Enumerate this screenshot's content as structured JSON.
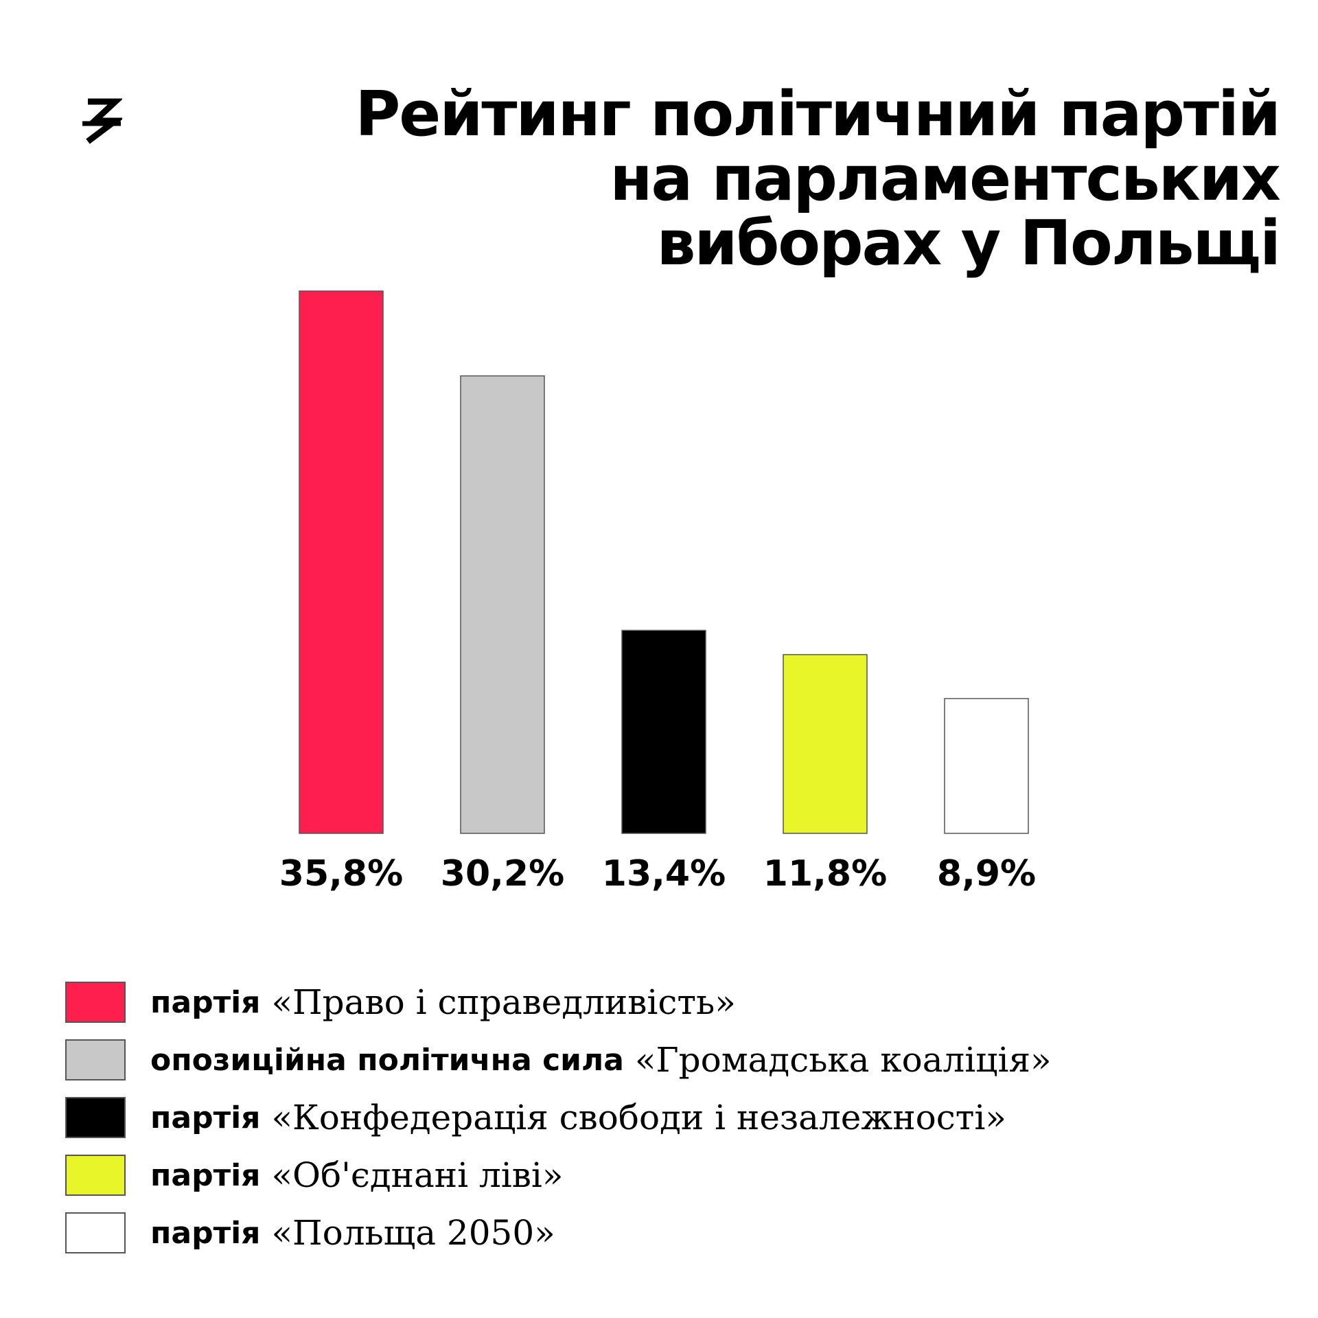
{
  "chart_data": {
    "type": "bar",
    "title_lines": [
      "Рейтинг політичний партій",
      "на парламентських",
      "виборах у Польщі"
    ],
    "categories": [
      "«Право і справедливість»",
      "«Громадська коаліція»",
      "«Конфедерація свободи і незалежності»",
      "«Об'єднані ліві»",
      "«Польща 2050»"
    ],
    "values": [
      35.8,
      30.2,
      13.4,
      11.8,
      8.9
    ],
    "value_labels": [
      "35,8%",
      "30,2%",
      "13,4%",
      "11,8%",
      "8,9%"
    ],
    "colors": [
      "#ff1f4f",
      "#c8c8c8",
      "#000000",
      "#e8f529",
      "#ffffff"
    ],
    "ylim": [
      0,
      35.8
    ],
    "grid": false,
    "legend_position": "bottom-left"
  },
  "legend": [
    {
      "prefix": "партія",
      "name": "«Право і справедливість»",
      "color": "#ff1f4f"
    },
    {
      "prefix": "опозиційна політична сила",
      "name": "«Громадська коаліція»",
      "color": "#c8c8c8"
    },
    {
      "prefix": "партія",
      "name": "«Конфедерація свободи і незалежності»",
      "color": "#000000"
    },
    {
      "prefix": "партія",
      "name": "«Об'єднані ліві»",
      "color": "#e8f529"
    },
    {
      "prefix": "партія",
      "name": "«Польща 2050»",
      "color": "#ffffff"
    }
  ],
  "logo_icon": "zaborona-logo-icon"
}
